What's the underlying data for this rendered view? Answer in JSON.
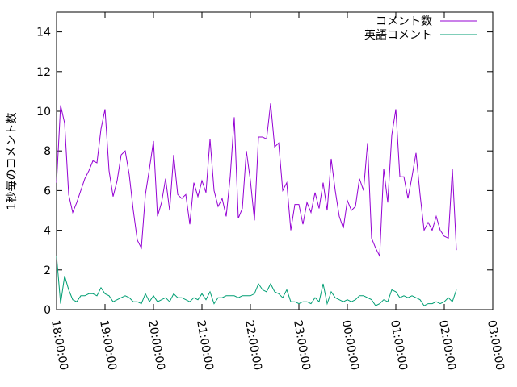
{
  "chart_data": {
    "type": "line",
    "title": "",
    "xlabel": "",
    "ylabel": "1秒毎のコメント数",
    "ylim": [
      0,
      15
    ],
    "yticks": [
      "0",
      "2",
      "4",
      "6",
      "8",
      "10",
      "12",
      "14"
    ],
    "ytick_values": [
      0,
      2,
      4,
      6,
      8,
      10,
      12,
      14
    ],
    "xlim_hours": [
      18,
      27
    ],
    "xticks": [
      "18:00:00",
      "19:00:00",
      "20:00:00",
      "21:00:00",
      "22:00:00",
      "23:00:00",
      "00:00:00",
      "01:00:00",
      "02:00:00",
      "03:00:00"
    ],
    "xtick_values": [
      18,
      19,
      20,
      21,
      22,
      23,
      24,
      25,
      26,
      27
    ],
    "x_start_hours": 18,
    "x_step_minutes": 5,
    "legend_position": "top-right",
    "grid": false,
    "series": [
      {
        "name": "コメント数",
        "color": "#9400d3",
        "values": [
          6.4,
          10.3,
          9.4,
          5.8,
          4.9,
          5.4,
          6.0,
          6.6,
          7.0,
          7.5,
          7.4,
          9.1,
          10.1,
          7.0,
          5.7,
          6.5,
          7.8,
          8.0,
          6.8,
          5.0,
          3.5,
          3.1,
          5.8,
          7.1,
          8.5,
          4.7,
          5.4,
          6.6,
          5.0,
          7.8,
          5.8,
          5.6,
          5.8,
          4.3,
          6.4,
          5.7,
          6.5,
          5.9,
          8.6,
          6.0,
          5.2,
          5.6,
          4.7,
          6.7,
          9.7,
          4.6,
          5.1,
          8.0,
          6.5,
          4.5,
          8.7,
          8.7,
          8.6,
          10.4,
          8.2,
          8.4,
          6.0,
          6.4,
          4.0,
          5.3,
          5.3,
          4.3,
          5.4,
          4.9,
          5.9,
          5.1,
          6.4,
          5.0,
          7.6,
          6.0,
          4.7,
          4.1,
          5.5,
          5.0,
          5.2,
          6.6,
          6.0,
          8.4,
          3.6,
          3.1,
          2.7,
          7.1,
          5.4,
          8.8,
          10.1,
          6.7,
          6.7,
          5.6,
          6.7,
          7.9,
          5.8,
          4.0,
          4.4,
          4.0,
          4.7,
          4.0,
          3.7,
          3.6,
          7.1,
          3.0
        ]
      },
      {
        "name": "英語コメント",
        "color": "#009e73",
        "values": [
          2.7,
          0.3,
          1.7,
          1.0,
          0.5,
          0.4,
          0.7,
          0.7,
          0.8,
          0.8,
          0.7,
          1.1,
          0.8,
          0.7,
          0.4,
          0.5,
          0.6,
          0.7,
          0.6,
          0.4,
          0.4,
          0.3,
          0.8,
          0.4,
          0.7,
          0.4,
          0.5,
          0.6,
          0.4,
          0.8,
          0.6,
          0.6,
          0.5,
          0.4,
          0.6,
          0.5,
          0.8,
          0.5,
          0.9,
          0.3,
          0.6,
          0.6,
          0.7,
          0.7,
          0.7,
          0.6,
          0.7,
          0.7,
          0.7,
          0.8,
          1.3,
          1.0,
          0.9,
          1.3,
          0.9,
          0.8,
          0.6,
          1.0,
          0.4,
          0.4,
          0.3,
          0.4,
          0.4,
          0.3,
          0.6,
          0.4,
          1.3,
          0.3,
          0.9,
          0.6,
          0.5,
          0.4,
          0.5,
          0.4,
          0.5,
          0.7,
          0.7,
          0.6,
          0.5,
          0.2,
          0.3,
          0.5,
          0.4,
          1.0,
          0.9,
          0.6,
          0.7,
          0.6,
          0.7,
          0.6,
          0.5,
          0.2,
          0.3,
          0.3,
          0.4,
          0.3,
          0.4,
          0.6,
          0.4,
          1.0
        ]
      }
    ]
  }
}
